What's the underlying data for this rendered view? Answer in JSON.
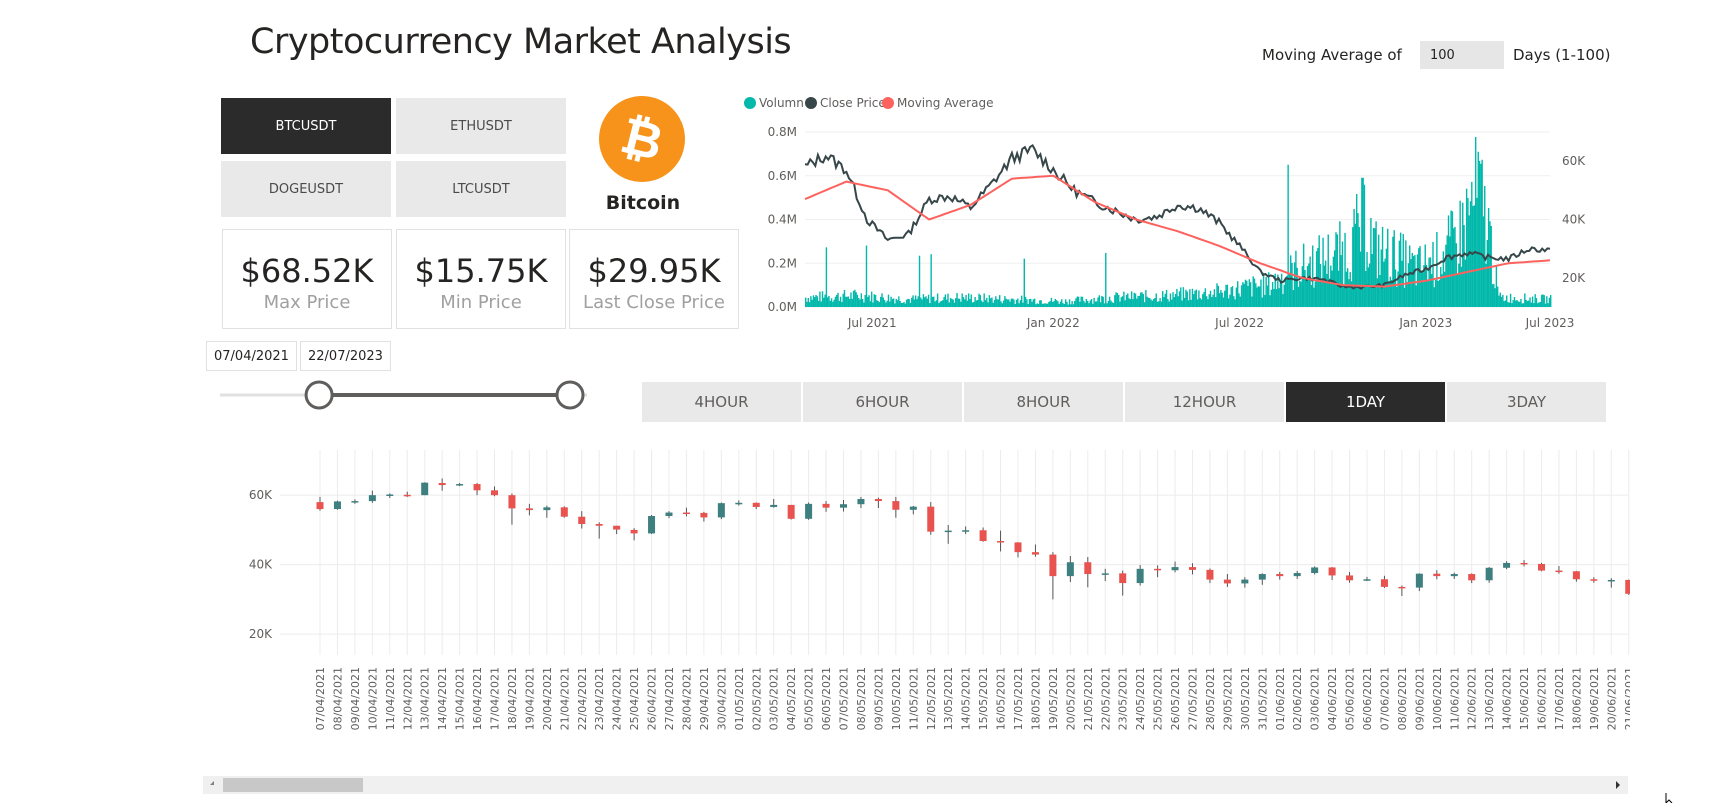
{
  "header": {
    "title": "Cryptocurrency Market Analysis"
  },
  "moving_average": {
    "label": "Moving Average of",
    "value": "100",
    "suffix": "Days (1-100)"
  },
  "symbols": [
    {
      "label": "BTCUSDT",
      "active": true
    },
    {
      "label": "ETHUSDT",
      "active": false
    },
    {
      "label": "DOGEUSDT",
      "active": false
    },
    {
      "label": "LTCUSDT",
      "active": false
    }
  ],
  "coin": {
    "name": "Bitcoin",
    "icon": "bitcoin-icon",
    "color": "#f7931a",
    "glyph": "₿"
  },
  "kpis": [
    {
      "value": "$68.52K",
      "label": "Max Price"
    },
    {
      "value": "$15.75K",
      "label": "Min Price"
    },
    {
      "value": "$29.95K",
      "label": "Last Close Price"
    }
  ],
  "date_range": {
    "start": "07/04/2021",
    "end": "22/07/2023",
    "start_fraction": 0.27,
    "end_fraction": 1.0
  },
  "timeframes": [
    {
      "label": "4HOUR",
      "active": false
    },
    {
      "label": "6HOUR",
      "active": false
    },
    {
      "label": "8HOUR",
      "active": false
    },
    {
      "label": "12HOUR",
      "active": false
    },
    {
      "label": "1DAY",
      "active": true
    },
    {
      "label": "3DAY",
      "active": false
    }
  ],
  "colors": {
    "volume": "#01b8aa",
    "close": "#374649",
    "ma": "#fd625e",
    "up": "#3e7f7f",
    "down": "#e8534f"
  },
  "chart_data": [
    {
      "type": "area",
      "legend": [
        "Volumn",
        "Close Price",
        "Moving Average"
      ],
      "legend_position": "top-left",
      "x_ticks": [
        "Jul 2021",
        "Jan 2022",
        "Jul 2022",
        "Jan 2023",
        "Jul 2023"
      ],
      "y_left_ticks": [
        "0.0M",
        "0.2M",
        "0.4M",
        "0.6M",
        "0.8M"
      ],
      "y_left_range": [
        0,
        0.8
      ],
      "y_right_ticks": [
        "20K",
        "40K",
        "60K"
      ],
      "y_right_range": [
        10000,
        70000
      ],
      "series": [
        {
          "name": "Close Price",
          "points": [
            [
              0,
              58000
            ],
            [
              4,
              62000
            ],
            [
              8,
              57000
            ],
            [
              12,
              40000
            ],
            [
              16,
              33000
            ],
            [
              20,
              35000
            ],
            [
              24,
              47000
            ],
            [
              28,
              48000
            ],
            [
              32,
              44000
            ],
            [
              36,
              52000
            ],
            [
              40,
              61000
            ],
            [
              44,
              64000
            ],
            [
              48,
              57000
            ],
            [
              52,
              50000
            ],
            [
              56,
              46000
            ],
            [
              60,
              43000
            ],
            [
              64,
              40000
            ],
            [
              68,
              41000
            ],
            [
              72,
              45000
            ],
            [
              76,
              44000
            ],
            [
              80,
              39000
            ],
            [
              84,
              31000
            ],
            [
              88,
              22000
            ],
            [
              92,
              19000
            ],
            [
              96,
              20000
            ],
            [
              100,
              19500
            ],
            [
              104,
              17000
            ],
            [
              108,
              16800
            ],
            [
              112,
              17500
            ],
            [
              116,
              21000
            ],
            [
              120,
              23000
            ],
            [
              124,
              27000
            ],
            [
              128,
              28500
            ],
            [
              132,
              27000
            ],
            [
              136,
              26500
            ],
            [
              140,
              30000
            ],
            [
              144,
              29500
            ]
          ]
        },
        {
          "name": "Moving Average",
          "points": [
            [
              0,
              47000
            ],
            [
              8,
              53000
            ],
            [
              16,
              50000
            ],
            [
              24,
              40000
            ],
            [
              32,
              45000
            ],
            [
              40,
              54000
            ],
            [
              48,
              55000
            ],
            [
              56,
              46000
            ],
            [
              64,
              40000
            ],
            [
              72,
              36000
            ],
            [
              80,
              31000
            ],
            [
              88,
              25000
            ],
            [
              96,
              20000
            ],
            [
              104,
              17500
            ],
            [
              112,
              17000
            ],
            [
              120,
              19000
            ],
            [
              128,
              22000
            ],
            [
              136,
              25000
            ],
            [
              144,
              26000
            ]
          ]
        },
        {
          "name": "Volumn",
          "unit": "M",
          "points": [
            [
              0,
              0.05
            ],
            [
              10,
              0.06
            ],
            [
              20,
              0.04
            ],
            [
              30,
              0.05
            ],
            [
              40,
              0.04
            ],
            [
              50,
              0.03
            ],
            [
              60,
              0.05
            ],
            [
              70,
              0.06
            ],
            [
              80,
              0.08
            ],
            [
              90,
              0.12
            ],
            [
              95,
              0.2
            ],
            [
              100,
              0.25
            ],
            [
              105,
              0.3
            ],
            [
              108,
              0.45
            ],
            [
              110,
              0.3
            ],
            [
              115,
              0.25
            ],
            [
              118,
              0.2
            ],
            [
              122,
              0.25
            ],
            [
              126,
              0.35
            ],
            [
              130,
              0.6
            ],
            [
              132,
              0.4
            ],
            [
              134,
              0.05
            ],
            [
              144,
              0.04
            ]
          ]
        }
      ]
    },
    {
      "type": "candlestick",
      "y_ticks": [
        "20K",
        "40K",
        "60K"
      ],
      "y_range": [
        14000,
        73000
      ],
      "candles": [
        {
          "date": "07/04/2021",
          "open": 58000,
          "close": 56000,
          "high": 59500,
          "low": 55500
        },
        {
          "date": "08/04/2021",
          "open": 56000,
          "close": 58200,
          "high": 58400,
          "low": 55800
        },
        {
          "date": "09/04/2021",
          "open": 58000,
          "close": 58300,
          "high": 58800,
          "low": 57500
        },
        {
          "date": "10/04/2021",
          "open": 58300,
          "close": 60000,
          "high": 61300,
          "low": 57800
        },
        {
          "date": "11/04/2021",
          "open": 59900,
          "close": 60200,
          "high": 60500,
          "low": 59200
        },
        {
          "date": "12/04/2021",
          "open": 60100,
          "close": 59700,
          "high": 61000,
          "low": 59500
        },
        {
          "date": "13/04/2021",
          "open": 60000,
          "close": 63600,
          "high": 63700,
          "low": 60000
        },
        {
          "date": "14/04/2021",
          "open": 63500,
          "close": 62900,
          "high": 64800,
          "low": 61300
        },
        {
          "date": "15/04/2021",
          "open": 62900,
          "close": 63200,
          "high": 63500,
          "low": 62600
        },
        {
          "date": "16/04/2021",
          "open": 63200,
          "close": 61400,
          "high": 63500,
          "low": 60000
        },
        {
          "date": "17/04/2021",
          "open": 61400,
          "close": 60000,
          "high": 62500,
          "low": 59700
        },
        {
          "date": "18/04/2021",
          "open": 60000,
          "close": 56200,
          "high": 60500,
          "low": 51500
        },
        {
          "date": "19/04/2021",
          "open": 56200,
          "close": 55700,
          "high": 57500,
          "low": 54200
        },
        {
          "date": "20/04/2021",
          "open": 55700,
          "close": 56500,
          "high": 57000,
          "low": 53500
        },
        {
          "date": "21/04/2021",
          "open": 56500,
          "close": 53800,
          "high": 56800,
          "low": 53500
        },
        {
          "date": "22/04/2021",
          "open": 53800,
          "close": 51700,
          "high": 55400,
          "low": 50400
        },
        {
          "date": "23/04/2021",
          "open": 51700,
          "close": 51200,
          "high": 52200,
          "low": 47500
        },
        {
          "date": "24/04/2021",
          "open": 51200,
          "close": 50100,
          "high": 51200,
          "low": 48800
        },
        {
          "date": "25/04/2021",
          "open": 50000,
          "close": 49000,
          "high": 50500,
          "low": 47000
        },
        {
          "date": "26/04/2021",
          "open": 49000,
          "close": 54000,
          "high": 54300,
          "low": 48800
        },
        {
          "date": "27/04/2021",
          "open": 54000,
          "close": 55000,
          "high": 55400,
          "low": 53400
        },
        {
          "date": "28/04/2021",
          "open": 55000,
          "close": 54900,
          "high": 56400,
          "low": 53900
        },
        {
          "date": "29/04/2021",
          "open": 54900,
          "close": 53600,
          "high": 55200,
          "low": 52400
        },
        {
          "date": "30/04/2021",
          "open": 53600,
          "close": 57700,
          "high": 57900,
          "low": 53100
        },
        {
          "date": "01/05/2021",
          "open": 57700,
          "close": 57800,
          "high": 58500,
          "low": 57000
        },
        {
          "date": "02/05/2021",
          "open": 57800,
          "close": 56600,
          "high": 57900,
          "low": 56000
        },
        {
          "date": "03/05/2021",
          "open": 56600,
          "close": 57200,
          "high": 58900,
          "low": 56400
        },
        {
          "date": "04/05/2021",
          "open": 57200,
          "close": 53200,
          "high": 57200,
          "low": 53000
        },
        {
          "date": "05/05/2021",
          "open": 53200,
          "close": 57500,
          "high": 57900,
          "low": 52900
        },
        {
          "date": "06/05/2021",
          "open": 57500,
          "close": 56400,
          "high": 58300,
          "low": 55200
        },
        {
          "date": "07/05/2021",
          "open": 56400,
          "close": 57400,
          "high": 58600,
          "low": 55300
        },
        {
          "date": "08/05/2021",
          "open": 57400,
          "close": 58900,
          "high": 59500,
          "low": 56300
        },
        {
          "date": "09/05/2021",
          "open": 58900,
          "close": 58300,
          "high": 59300,
          "low": 56300
        },
        {
          "date": "10/05/2021",
          "open": 58300,
          "close": 55800,
          "high": 59500,
          "low": 53500
        },
        {
          "date": "11/05/2021",
          "open": 55800,
          "close": 56700,
          "high": 56900,
          "low": 54500
        },
        {
          "date": "12/05/2021",
          "open": 56700,
          "close": 49500,
          "high": 58000,
          "low": 48600
        },
        {
          "date": "13/05/2021",
          "open": 49500,
          "close": 49800,
          "high": 51400,
          "low": 46000
        },
        {
          "date": "14/05/2021",
          "open": 49800,
          "close": 49900,
          "high": 51000,
          "low": 48800
        },
        {
          "date": "15/05/2021",
          "open": 49900,
          "close": 46800,
          "high": 50700,
          "low": 46600
        },
        {
          "date": "16/05/2021",
          "open": 46800,
          "close": 46400,
          "high": 49800,
          "low": 43800
        },
        {
          "date": "17/05/2021",
          "open": 46400,
          "close": 43600,
          "high": 46500,
          "low": 42100
        },
        {
          "date": "18/05/2021",
          "open": 43600,
          "close": 42900,
          "high": 45800,
          "low": 42300
        },
        {
          "date": "19/05/2021",
          "open": 42900,
          "close": 36700,
          "high": 43600,
          "low": 30000
        },
        {
          "date": "20/05/2021",
          "open": 36700,
          "close": 40700,
          "high": 42500,
          "low": 35000
        },
        {
          "date": "21/05/2021",
          "open": 40700,
          "close": 37300,
          "high": 42200,
          "low": 33500
        },
        {
          "date": "22/05/2021",
          "open": 37300,
          "close": 37500,
          "high": 38800,
          "low": 35300
        },
        {
          "date": "23/05/2021",
          "open": 37500,
          "close": 34700,
          "high": 38300,
          "low": 31100
        },
        {
          "date": "24/05/2021",
          "open": 34700,
          "close": 38800,
          "high": 39900,
          "low": 34000
        },
        {
          "date": "25/05/2021",
          "open": 38800,
          "close": 38400,
          "high": 39800,
          "low": 36400
        },
        {
          "date": "26/05/2021",
          "open": 38400,
          "close": 39300,
          "high": 40900,
          "low": 37800
        },
        {
          "date": "27/05/2021",
          "open": 39300,
          "close": 38500,
          "high": 40400,
          "low": 37200
        },
        {
          "date": "28/05/2021",
          "open": 38500,
          "close": 35700,
          "high": 38900,
          "low": 34700
        },
        {
          "date": "29/05/2021",
          "open": 35700,
          "close": 34600,
          "high": 37300,
          "low": 33600
        },
        {
          "date": "30/05/2021",
          "open": 34600,
          "close": 35700,
          "high": 36400,
          "low": 33400
        },
        {
          "date": "31/05/2021",
          "open": 35700,
          "close": 37300,
          "high": 37500,
          "low": 34200
        },
        {
          "date": "01/06/2021",
          "open": 37300,
          "close": 36700,
          "high": 37900,
          "low": 35700
        },
        {
          "date": "02/06/2021",
          "open": 36700,
          "close": 37600,
          "high": 38200,
          "low": 35900
        },
        {
          "date": "03/06/2021",
          "open": 37600,
          "close": 39200,
          "high": 39500,
          "low": 37200
        },
        {
          "date": "04/06/2021",
          "open": 39200,
          "close": 36900,
          "high": 39300,
          "low": 35600
        },
        {
          "date": "05/06/2021",
          "open": 36900,
          "close": 35500,
          "high": 37900,
          "low": 34800
        },
        {
          "date": "06/06/2021",
          "open": 35500,
          "close": 35800,
          "high": 36500,
          "low": 35300
        },
        {
          "date": "07/06/2021",
          "open": 35800,
          "close": 33600,
          "high": 36800,
          "low": 33300
        },
        {
          "date": "08/06/2021",
          "open": 33600,
          "close": 33400,
          "high": 34000,
          "low": 31000
        },
        {
          "date": "09/06/2021",
          "open": 33400,
          "close": 37400,
          "high": 37500,
          "low": 32400
        },
        {
          "date": "10/06/2021",
          "open": 37400,
          "close": 36700,
          "high": 38400,
          "low": 35800
        },
        {
          "date": "11/06/2021",
          "open": 36700,
          "close": 37300,
          "high": 37700,
          "low": 35900
        },
        {
          "date": "12/06/2021",
          "open": 37300,
          "close": 35500,
          "high": 37500,
          "low": 34700
        },
        {
          "date": "13/06/2021",
          "open": 35500,
          "close": 39100,
          "high": 39300,
          "low": 34800
        },
        {
          "date": "14/06/2021",
          "open": 39100,
          "close": 40500,
          "high": 41000,
          "low": 38700
        },
        {
          "date": "15/06/2021",
          "open": 40500,
          "close": 40200,
          "high": 41300,
          "low": 39500
        },
        {
          "date": "16/06/2021",
          "open": 40200,
          "close": 38300,
          "high": 40500,
          "low": 38100
        },
        {
          "date": "17/06/2021",
          "open": 38300,
          "close": 38100,
          "high": 39600,
          "low": 37400
        },
        {
          "date": "18/06/2021",
          "open": 38100,
          "close": 35800,
          "high": 38200,
          "low": 35100
        },
        {
          "date": "19/06/2021",
          "open": 35800,
          "close": 35500,
          "high": 36400,
          "low": 34800
        },
        {
          "date": "20/06/2021",
          "open": 35500,
          "close": 35600,
          "high": 36100,
          "low": 33400
        },
        {
          "date": "21/06/2021",
          "open": 35600,
          "close": 31600,
          "high": 35700,
          "low": 31300
        },
        {
          "date": "22/06/2021",
          "open": 31600,
          "close": 32500,
          "high": 33300,
          "low": 28800
        },
        {
          "date": "23/06/2021",
          "open": 32500,
          "close": 33700,
          "high": 34800,
          "low": 31700
        }
      ]
    }
  ]
}
